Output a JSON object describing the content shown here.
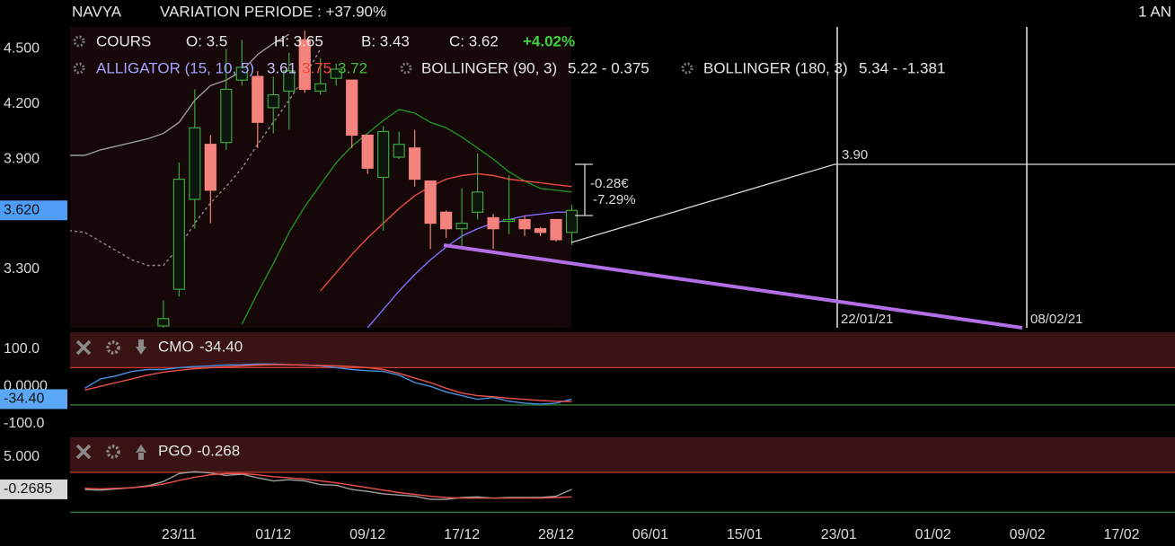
{
  "header": {
    "symbol": "NAVYA",
    "variation": "VARIATION PERIODE : +37.90%",
    "period": "1 AN"
  },
  "legend": {
    "cours": {
      "label": "COURS",
      "open": "O: 3.5",
      "high": "H: 3.65",
      "low": "B: 3.43",
      "close": "C: 3.62",
      "change": "+4.02%"
    },
    "alligator": {
      "label": "ALLIGATOR (15, 10, 5)",
      "values": [
        "3.61",
        "3.75",
        "3.72"
      ]
    },
    "bollinger_90": {
      "label": "BOLLINGER (90, 3)",
      "values": "5.22 - 0.375"
    },
    "bollinger_180": {
      "label": "BOLLINGER (180, 3)",
      "values": "5.34 - -1.381"
    }
  },
  "chart_data": [
    {
      "type": "candlestick",
      "xlim": [
        -5.94,
        64.4
      ],
      "xticks": [
        {
          "value": 1,
          "label": "23/11"
        },
        {
          "value": 7,
          "label": "01/12"
        },
        {
          "value": 13,
          "label": "09/12"
        },
        {
          "value": 19,
          "label": "17/12"
        },
        {
          "value": 25,
          "label": "28/12"
        },
        {
          "value": 31,
          "label": "06/01"
        },
        {
          "value": 37,
          "label": "15/01"
        },
        {
          "value": 43,
          "label": "23/01"
        },
        {
          "value": 49,
          "label": "01/02"
        },
        {
          "value": 55,
          "label": "09/02"
        },
        {
          "value": 61,
          "label": "17/02"
        }
      ],
      "ylim": [
        2.98,
        4.62
      ],
      "yticks": [
        {
          "value": 4.5,
          "label": "4.500"
        },
        {
          "value": 4.2,
          "label": "4.200"
        },
        {
          "value": 3.9,
          "label": "3.900"
        },
        {
          "value": 3.3,
          "label": "3.300"
        }
      ],
      "last_price": {
        "value": 3.62,
        "label": "3.620"
      },
      "up_color": "#3fa33f",
      "down_color": "#f4837d",
      "x": [
        -6,
        -5,
        -4,
        -3,
        -2,
        -1,
        0,
        1,
        2,
        3,
        4,
        5,
        6,
        7,
        8,
        9,
        10,
        11,
        12,
        13,
        14,
        15,
        16,
        17,
        18,
        19,
        20,
        21,
        22,
        23,
        24,
        25,
        26
      ],
      "open": [
        null,
        null,
        null,
        null,
        null,
        null,
        2.99,
        3.19,
        3.68,
        3.98,
        3.99,
        4.33,
        4.35,
        4.18,
        4.27,
        4.55,
        4.27,
        4.34,
        4.33,
        4.03,
        3.8,
        3.91,
        3.96,
        3.78,
        3.61,
        3.52,
        3.61,
        3.58,
        3.56,
        3.57,
        3.52,
        3.57,
        3.5
      ],
      "high": [
        null,
        null,
        null,
        null,
        null,
        null,
        3.13,
        3.88,
        4.28,
        4.03,
        4.5,
        4.55,
        4.38,
        4.35,
        4.48,
        4.6,
        4.45,
        4.42,
        4.33,
        4.03,
        4.08,
        4.05,
        4.06,
        3.78,
        3.62,
        3.74,
        3.93,
        3.6,
        3.81,
        3.59,
        3.53,
        3.57,
        3.65
      ],
      "low": [
        null,
        null,
        null,
        null,
        null,
        null,
        2.98,
        3.15,
        3.52,
        3.55,
        3.95,
        4.3,
        3.96,
        4.04,
        4.06,
        4.26,
        4.25,
        4.3,
        3.96,
        3.82,
        3.51,
        3.9,
        3.75,
        3.41,
        3.47,
        3.42,
        3.57,
        3.41,
        3.49,
        3.48,
        3.48,
        3.45,
        3.43
      ],
      "close": [
        null,
        null,
        null,
        null,
        null,
        null,
        3.03,
        3.79,
        4.07,
        3.73,
        4.28,
        4.4,
        4.1,
        4.25,
        4.38,
        4.28,
        4.31,
        4.39,
        4.03,
        3.85,
        4.05,
        3.98,
        3.79,
        3.55,
        3.52,
        3.55,
        3.72,
        3.52,
        3.57,
        3.52,
        3.5,
        3.46,
        3.62
      ],
      "series": [
        {
          "color": "#9a9a9a",
          "values": [
            3.92,
            3.92,
            3.95,
            3.97,
            3.99,
            4.01,
            4.04,
            4.1,
            4.22,
            4.3,
            4.33,
            4.38,
            4.47,
            4.53,
            4.58,
            null,
            null,
            null,
            null,
            null,
            null,
            null,
            null,
            null,
            null,
            null,
            null,
            null,
            null,
            null,
            null,
            null,
            null
          ]
        },
        {
          "color": "#8a8a8a",
          "dashed": true,
          "values": [
            3.51,
            3.5,
            3.45,
            3.4,
            3.35,
            3.32,
            3.32,
            3.42,
            3.55,
            3.66,
            3.75,
            3.85,
            3.98,
            4.1,
            4.22,
            4.35,
            4.5,
            null,
            null,
            null,
            null,
            null,
            null,
            null,
            null,
            null,
            null,
            null,
            null,
            null,
            null,
            null,
            null
          ]
        },
        {
          "color": "#1f8f1f",
          "values": [
            null,
            null,
            null,
            null,
            null,
            null,
            null,
            null,
            null,
            null,
            null,
            3.0,
            3.17,
            3.33,
            3.5,
            3.64,
            3.76,
            3.88,
            3.97,
            4.04,
            4.11,
            4.17,
            4.15,
            4.1,
            4.07,
            4.02,
            3.96,
            3.9,
            3.83,
            3.78,
            3.74,
            3.73,
            3.72
          ]
        },
        {
          "color": "#ec4a3f",
          "values": [
            null,
            null,
            null,
            null,
            null,
            null,
            null,
            null,
            null,
            null,
            null,
            null,
            null,
            null,
            null,
            null,
            3.18,
            3.28,
            3.38,
            3.47,
            3.55,
            3.63,
            3.7,
            3.75,
            3.79,
            3.81,
            3.82,
            3.81,
            3.79,
            3.78,
            3.77,
            3.76,
            3.75
          ]
        },
        {
          "color": "#7d6dff",
          "values": [
            null,
            null,
            null,
            null,
            null,
            null,
            null,
            null,
            null,
            null,
            null,
            null,
            null,
            null,
            null,
            null,
            null,
            null,
            null,
            2.98,
            3.08,
            3.18,
            3.27,
            3.35,
            3.42,
            3.48,
            3.52,
            3.55,
            3.57,
            3.59,
            3.6,
            3.61,
            3.61
          ]
        }
      ],
      "annotations": [
        "3.90",
        "22/01/21",
        "08/02/21",
        "-0.28€",
        "-7.29%"
      ]
    },
    {
      "type": "line",
      "title": "CMO",
      "title_value": "-34.40",
      "ylim": [
        -120,
        145
      ],
      "yticks": [
        {
          "value": 100,
          "label": "100.0"
        },
        {
          "value": 0,
          "label": "0.0000"
        },
        {
          "value": -100,
          "label": "-100.0"
        }
      ],
      "levels": [
        50,
        -50
      ],
      "level_colors": [
        "#c0392b",
        "#2e7d32"
      ],
      "last_value": {
        "value": -34.4,
        "label": "-34.40"
      },
      "tag_color": "#5aa8f5",
      "x": [
        -5,
        -4,
        -3,
        -2,
        -1,
        0,
        1,
        2,
        3,
        4,
        5,
        6,
        7,
        8,
        9,
        10,
        11,
        12,
        13,
        14,
        15,
        16,
        17,
        18,
        19,
        20,
        21,
        22,
        23,
        24,
        25,
        26
      ],
      "series": [
        {
          "color": "#4a8fe0",
          "values": [
            -5,
            20,
            28,
            40,
            45,
            45,
            50,
            53,
            55,
            57,
            58,
            60,
            60,
            58,
            57,
            55,
            50,
            45,
            42,
            40,
            30,
            10,
            0,
            -15,
            -25,
            -35,
            -30,
            -40,
            -45,
            -48,
            -45,
            -34.4
          ]
        },
        {
          "color": "#f0504a",
          "values": [
            -10,
            0,
            10,
            20,
            30,
            38,
            43,
            47,
            50,
            52,
            55,
            57,
            58,
            58,
            57,
            56,
            55,
            53,
            50,
            45,
            35,
            22,
            10,
            -5,
            -18,
            -25,
            -28,
            -32,
            -35,
            -38,
            -40,
            -41
          ]
        }
      ]
    },
    {
      "type": "line",
      "title": "PGO",
      "title_value": "-0.268",
      "ylim": [
        -5.4,
        8.2
      ],
      "yticks": [
        {
          "value": 5,
          "label": "5.000"
        }
      ],
      "levels": [
        2.5,
        -4
      ],
      "level_colors": [
        "#c0392b",
        "#2e7d32"
      ],
      "last_value": {
        "value": -0.2685,
        "label": "-0.2685"
      },
      "tag_color": "#d8d8d8",
      "x": [
        -5,
        -4,
        -3,
        -2,
        -1,
        0,
        1,
        2,
        3,
        4,
        5,
        6,
        7,
        8,
        9,
        10,
        11,
        12,
        13,
        14,
        15,
        16,
        17,
        18,
        19,
        20,
        21,
        22,
        23,
        24,
        25,
        26
      ],
      "series": [
        {
          "color": "#a0a0a0",
          "values": [
            -0.3,
            -0.4,
            -0.2,
            0.0,
            0.3,
            1.0,
            2.3,
            2.6,
            2.4,
            2.0,
            2.2,
            1.6,
            1.1,
            1.3,
            1.1,
            0.5,
            0.4,
            -0.3,
            -0.6,
            -1.0,
            -1.2,
            -1.4,
            -1.9,
            -1.9,
            -1.6,
            -1.5,
            -1.7,
            -1.6,
            -1.6,
            -1.6,
            -1.4,
            -0.27
          ]
        },
        {
          "color": "#f0504a",
          "values": [
            -0.1,
            -0.2,
            -0.1,
            0.0,
            0.2,
            0.6,
            1.2,
            1.7,
            2.1,
            2.3,
            2.3,
            2.1,
            1.8,
            1.6,
            1.4,
            1.1,
            0.8,
            0.4,
            0.0,
            -0.4,
            -0.8,
            -1.1,
            -1.4,
            -1.6,
            -1.7,
            -1.7,
            -1.7,
            -1.7,
            -1.7,
            -1.7,
            -1.6,
            -1.5
          ]
        }
      ]
    }
  ]
}
